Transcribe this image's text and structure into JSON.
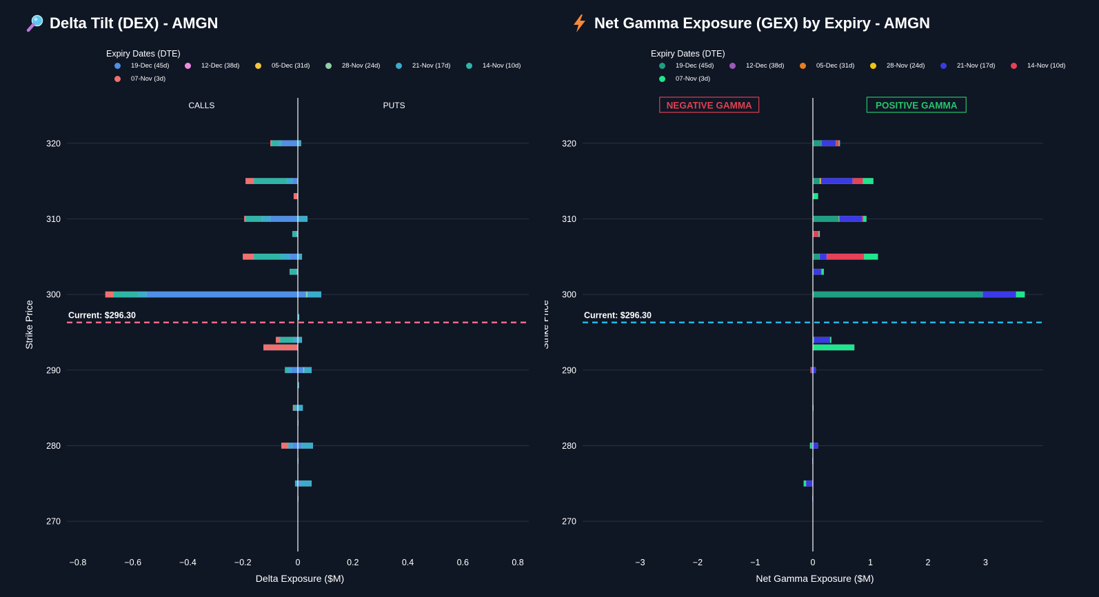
{
  "chart_data": [
    {
      "type": "bar",
      "orientation": "horizontal",
      "stacked": true,
      "title": "Delta Tilt (DEX) - AMGN",
      "title_icon": "magnifier-icon",
      "xlabel": "Delta Exposure ($M)",
      "ylabel": "Strike Price",
      "xlim": [
        -0.84,
        0.84
      ],
      "ylim": [
        266,
        326
      ],
      "x_ticks": [
        -0.8,
        -0.6,
        -0.4,
        -0.2,
        0,
        0.2,
        0.4,
        0.6,
        0.8
      ],
      "x_tick_labels": [
        "−0.8",
        "−0.6",
        "−0.4",
        "−0.2",
        "0",
        "0.2",
        "0.4",
        "0.6",
        "0.8"
      ],
      "y_ticks": [
        270,
        280,
        290,
        300,
        310,
        320
      ],
      "grid": true,
      "legend_title": "Expiry Dates (DTE)",
      "legend_position": "top",
      "annotations": [
        {
          "text": "CALLS",
          "x": -0.35,
          "y": 325
        },
        {
          "text": "PUTS",
          "x": 0.35,
          "y": 325
        }
      ],
      "current_price": {
        "value": 296.3,
        "label": "Current: $296.30",
        "color": "#f06b8a"
      },
      "series": [
        {
          "name": "19-Dec (45d)",
          "color": "#4f8fe6",
          "values": [
            {
              "strike": 320,
              "value": -0.06
            },
            {
              "strike": 315,
              "value": -0.02
            },
            {
              "strike": 310,
              "value": -0.1
            },
            {
              "strike": 305,
              "value": -0.03
            },
            {
              "strike": 300,
              "value": -0.55
            },
            {
              "strike": 300,
              "value": 0.03
            },
            {
              "strike": 294,
              "value": -0.005
            },
            {
              "strike": 290,
              "value": -0.025
            },
            {
              "strike": 290,
              "value": 0.02
            },
            {
              "strike": 280,
              "value": -0.02
            },
            {
              "strike": 280,
              "value": 0.015
            },
            {
              "strike": 275,
              "value": 0.01
            }
          ]
        },
        {
          "name": "12-Dec (38d)",
          "color": "#f08ae0",
          "values": []
        },
        {
          "name": "05-Dec (31d)",
          "color": "#f5c341",
          "values": []
        },
        {
          "name": "28-Nov (24d)",
          "color": "#8fcfa8",
          "values": [
            {
              "strike": 300,
              "value": 0.005
            },
            {
              "strike": 290,
              "value": 0.003
            }
          ]
        },
        {
          "name": "21-Nov (17d)",
          "color": "#3aaccc",
          "values": [
            {
              "strike": 320,
              "value": -0.01
            },
            {
              "strike": 320,
              "value": 0.012
            },
            {
              "strike": 315,
              "value": -0.02
            },
            {
              "strike": 310,
              "value": -0.03
            },
            {
              "strike": 310,
              "value": 0.035
            },
            {
              "strike": 308,
              "value": -0.005
            },
            {
              "strike": 305,
              "value": -0.03
            },
            {
              "strike": 305,
              "value": 0.015
            },
            {
              "strike": 303,
              "value": -0.005
            },
            {
              "strike": 300,
              "value": -0.03
            },
            {
              "strike": 300,
              "value": 0.05
            },
            {
              "strike": 297,
              "value": 0.005
            },
            {
              "strike": 294,
              "value": -0.01
            },
            {
              "strike": 294,
              "value": 0.015
            },
            {
              "strike": 290,
              "value": -0.012
            },
            {
              "strike": 290,
              "value": 0.027
            },
            {
              "strike": 288,
              "value": 0.004
            },
            {
              "strike": 285,
              "value": -0.008
            },
            {
              "strike": 285,
              "value": 0.018
            },
            {
              "strike": 283,
              "value": 0.002
            },
            {
              "strike": 280,
              "value": -0.015
            },
            {
              "strike": 280,
              "value": 0.04
            },
            {
              "strike": 278,
              "value": 0.002
            },
            {
              "strike": 275,
              "value": -0.01
            },
            {
              "strike": 275,
              "value": 0.04
            },
            {
              "strike": 273,
              "value": 0.002
            }
          ]
        },
        {
          "name": "14-Nov (10d)",
          "color": "#2fb5a6",
          "values": [
            {
              "strike": 320,
              "value": -0.025
            },
            {
              "strike": 315,
              "value": -0.12
            },
            {
              "strike": 310,
              "value": -0.06
            },
            {
              "strike": 308,
              "value": -0.015
            },
            {
              "strike": 305,
              "value": -0.1
            },
            {
              "strike": 303,
              "value": -0.025
            },
            {
              "strike": 300,
              "value": -0.09
            },
            {
              "strike": 294,
              "value": -0.05
            },
            {
              "strike": 290,
              "value": -0.01
            },
            {
              "strike": 285,
              "value": -0.005
            }
          ]
        },
        {
          "name": "07-Nov (3d)",
          "color": "#f07070",
          "values": [
            {
              "strike": 320,
              "value": -0.005
            },
            {
              "strike": 315,
              "value": -0.03
            },
            {
              "strike": 313,
              "value": -0.015
            },
            {
              "strike": 310,
              "value": -0.005
            },
            {
              "strike": 305,
              "value": -0.04
            },
            {
              "strike": 300,
              "value": -0.03
            },
            {
              "strike": 294,
              "value": -0.015
            },
            {
              "strike": 293,
              "value": -0.125
            },
            {
              "strike": 285,
              "value": -0.005
            },
            {
              "strike": 280,
              "value": -0.025
            }
          ]
        }
      ]
    },
    {
      "type": "bar",
      "orientation": "horizontal",
      "stacked": true,
      "title": "Net Gamma Exposure (GEX) by Expiry - AMGN",
      "title_icon": "lightning-bolt-icon",
      "xlabel": "Net Gamma Exposure ($M)",
      "ylabel": "Strike Price",
      "xlim": [
        -4.0,
        4.0
      ],
      "ylim": [
        266,
        326
      ],
      "x_ticks": [
        -3,
        -2,
        -1,
        0,
        1,
        2,
        3
      ],
      "x_tick_labels": [
        "−3",
        "−2",
        "−1",
        "0",
        "1",
        "2",
        "3"
      ],
      "y_ticks": [
        270,
        280,
        290,
        300,
        310,
        320
      ],
      "grid": true,
      "legend_title": "Expiry Dates (DTE)",
      "legend_position": "top",
      "annotations": [
        {
          "text": "NEGATIVE GAMMA",
          "x": -1.8,
          "y": 325,
          "color": "#e04050"
        },
        {
          "text": "POSITIVE GAMMA",
          "x": 1.8,
          "y": 325,
          "color": "#27c46b"
        }
      ],
      "current_price": {
        "value": 296.3,
        "label": "Current: $296.30",
        "color": "#1fb8e6"
      },
      "series": [
        {
          "name": "19-Dec (45d)",
          "color": "#1e9e82",
          "values": [
            {
              "strike": 320,
              "value": 0.15
            },
            {
              "strike": 315,
              "value": 0.12
            },
            {
              "strike": 310,
              "value": 0.45
            },
            {
              "strike": 305,
              "value": 0.12
            },
            {
              "strike": 300,
              "value": 2.95
            },
            {
              "strike": 294,
              "value": 0.02
            }
          ]
        },
        {
          "name": "12-Dec (38d)",
          "color": "#9b59b6",
          "values": []
        },
        {
          "name": "05-Dec (31d)",
          "color": "#e67e22",
          "values": []
        },
        {
          "name": "28-Nov (24d)",
          "color": "#f1c40f",
          "values": [
            {
              "strike": 315,
              "value": 0.02
            },
            {
              "strike": 310,
              "value": 0.01
            }
          ]
        },
        {
          "name": "21-Nov (17d)",
          "color": "#3a3ae6",
          "values": [
            {
              "strike": 320,
              "value": 0.25
            },
            {
              "strike": 315,
              "value": 0.55
            },
            {
              "strike": 310,
              "value": 0.4
            },
            {
              "strike": 305,
              "value": 0.12
            },
            {
              "strike": 303,
              "value": 0.15
            },
            {
              "strike": 300,
              "value": 0.58
            },
            {
              "strike": 294,
              "value": 0.28
            },
            {
              "strike": 290,
              "value": 0.05
            },
            {
              "strike": 290,
              "value": -0.02
            },
            {
              "strike": 280,
              "value": 0.09
            },
            {
              "strike": 280,
              "value": -0.02
            },
            {
              "strike": 278,
              "value": -0.01
            },
            {
              "strike": 275,
              "value": -0.12
            },
            {
              "strike": 273,
              "value": -0.01
            }
          ]
        },
        {
          "name": "14-Nov (10d)",
          "color": "#e84057",
          "values": [
            {
              "strike": 320,
              "value": 0.05
            },
            {
              "strike": 315,
              "value": 0.18
            },
            {
              "strike": 310,
              "value": 0.02
            },
            {
              "strike": 308,
              "value": 0.1
            },
            {
              "strike": 305,
              "value": 0.65
            },
            {
              "strike": 290,
              "value": -0.02
            }
          ]
        },
        {
          "name": "07-Nov (3d)",
          "color": "#1ee68c",
          "values": [
            {
              "strike": 320,
              "value": 0.02
            },
            {
              "strike": 315,
              "value": 0.18
            },
            {
              "strike": 313,
              "value": 0.09
            },
            {
              "strike": 310,
              "value": 0.05
            },
            {
              "strike": 308,
              "value": 0.02
            },
            {
              "strike": 305,
              "value": 0.24
            },
            {
              "strike": 303,
              "value": 0.04
            },
            {
              "strike": 300,
              "value": 0.15
            },
            {
              "strike": 294,
              "value": 0.02
            },
            {
              "strike": 293,
              "value": 0.72
            },
            {
              "strike": 285,
              "value": 0.01
            },
            {
              "strike": 280,
              "value": -0.03
            },
            {
              "strike": 275,
              "value": -0.04
            }
          ]
        }
      ]
    }
  ]
}
